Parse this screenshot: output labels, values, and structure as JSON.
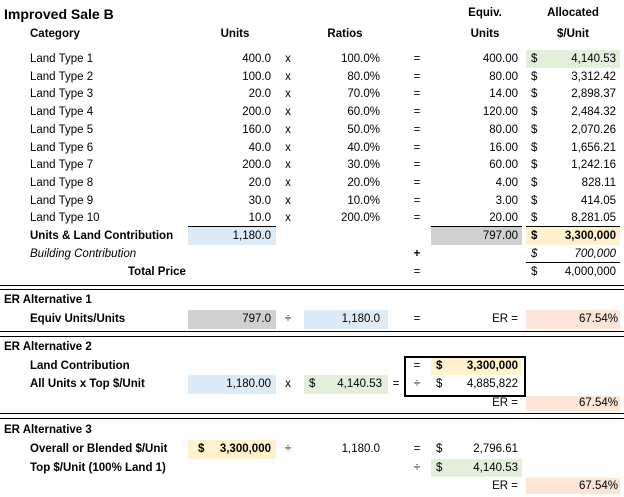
{
  "title": "Improved Sale B",
  "headers": {
    "category": "Category",
    "units": "Units",
    "ratios": "Ratios",
    "equiv_line1": "Equiv.",
    "equiv_line2": "Units",
    "alloc_line1": "Allocated",
    "alloc_line2": "$/Unit"
  },
  "ops": {
    "x": "x",
    "eq": "=",
    "plus": "+",
    "div": "÷",
    "dollar": "$"
  },
  "rows": [
    {
      "category": "Land Type 1",
      "units": "400.0",
      "ratio": "100.0%",
      "equiv": "400.00",
      "alloc": "4,140.53"
    },
    {
      "category": "Land Type 2",
      "units": "100.0",
      "ratio": "80.0%",
      "equiv": "80.00",
      "alloc": "3,312.42"
    },
    {
      "category": "Land Type 3",
      "units": "20.0",
      "ratio": "70.0%",
      "equiv": "14.00",
      "alloc": "2,898.37"
    },
    {
      "category": "Land Type 4",
      "units": "200.0",
      "ratio": "60.0%",
      "equiv": "120.00",
      "alloc": "2,484.32"
    },
    {
      "category": "Land Type 5",
      "units": "160.0",
      "ratio": "50.0%",
      "equiv": "80.00",
      "alloc": "2,070.26"
    },
    {
      "category": "Land Type 6",
      "units": "40.0",
      "ratio": "40.0%",
      "equiv": "16.00",
      "alloc": "1,656.21"
    },
    {
      "category": "Land Type 7",
      "units": "200.0",
      "ratio": "30.0%",
      "equiv": "60.00",
      "alloc": "1,242.16"
    },
    {
      "category": "Land Type 8",
      "units": "20.0",
      "ratio": "20.0%",
      "equiv": "4.00",
      "alloc": "828.11"
    },
    {
      "category": "Land Type 9",
      "units": "30.0",
      "ratio": "10.0%",
      "equiv": "3.00",
      "alloc": "414.05"
    },
    {
      "category": "Land Type 10",
      "units": "10.0",
      "ratio": "200.0%",
      "equiv": "20.00",
      "alloc": "8,281.05"
    }
  ],
  "totals": {
    "units_label": "Units & Land Contribution",
    "units_total": "1,180.0",
    "equiv_total": "797.00",
    "land_contribution": "3,300,000",
    "building_label": "Building Contribution",
    "building_value": "700,000",
    "total_label": "Total Price",
    "total_value": "4,000,000"
  },
  "alt1": {
    "title": "ER Alternative 1",
    "label": "Equiv Units/Units",
    "a": "797.0",
    "b": "1,180.0",
    "er_label": "ER =",
    "er": "67.54%"
  },
  "alt2": {
    "title": "ER Alternative 2",
    "land_label": "Land Contribution",
    "land_value": "3,300,000",
    "all_label": "All Units x Top $/Unit",
    "units": "1,180.00",
    "top": "4,140.53",
    "product": "4,885,822",
    "er_label": "ER =",
    "er": "67.54%"
  },
  "alt3": {
    "title": "ER Alternative 3",
    "overall_label": "Overall or Blended $/Unit",
    "overall_value": "3,300,000",
    "units": "1,180.0",
    "blended": "2,796.61",
    "top_label": "Top $/Unit (100% Land 1)",
    "top": "4,140.53",
    "er_label": "ER =",
    "er": "67.54%"
  }
}
